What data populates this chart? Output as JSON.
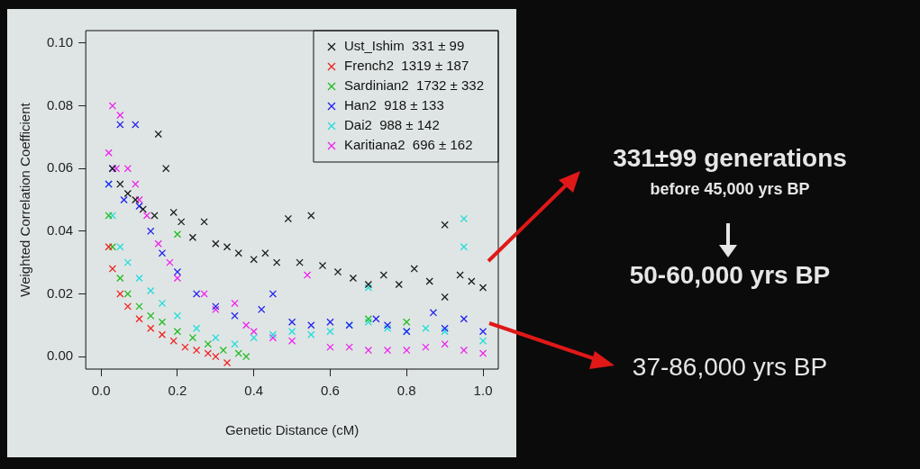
{
  "chart_data": {
    "type": "scatter",
    "xlabel": "Genetic Distance (cM)",
    "ylabel": "Weighted Correlation Coefficient",
    "xlim": [
      -0.04,
      1.04
    ],
    "ylim": [
      -0.004,
      0.104
    ],
    "xticks": [
      {
        "value": 0,
        "label": "0.0"
      },
      {
        "value": 0.2,
        "label": "0.2"
      },
      {
        "value": 0.4,
        "label": "0.4"
      },
      {
        "value": 0.6,
        "label": "0.6"
      },
      {
        "value": 0.8,
        "label": "0.8"
      },
      {
        "value": 1,
        "label": "1.0"
      }
    ],
    "yticks": [
      {
        "value": 0,
        "label": "0.00"
      },
      {
        "value": 0.02,
        "label": "0.02"
      },
      {
        "value": 0.04,
        "label": "0.04"
      },
      {
        "value": 0.06,
        "label": "0.06"
      },
      {
        "value": 0.08,
        "label": "0.08"
      },
      {
        "value": 0.1,
        "label": "0.10"
      }
    ],
    "grid": false,
    "legend": "top right",
    "marker": "cross",
    "series": [
      {
        "name": "Ust_Ishim  331 ± 99",
        "color": "#1a1a1a",
        "x": [
          0.03,
          0.05,
          0.07,
          0.09,
          0.11,
          0.14,
          0.15,
          0.17,
          0.19,
          0.21,
          0.24,
          0.27,
          0.3,
          0.33,
          0.36,
          0.4,
          0.43,
          0.46,
          0.49,
          0.52,
          0.55,
          0.58,
          0.62,
          0.66,
          0.7,
          0.74,
          0.78,
          0.82,
          0.86,
          0.9,
          0.9,
          0.94,
          0.97,
          1.0
        ],
        "values": [
          0.06,
          0.055,
          0.052,
          0.05,
          0.047,
          0.045,
          0.071,
          0.06,
          0.046,
          0.043,
          0.038,
          0.043,
          0.036,
          0.035,
          0.033,
          0.031,
          0.033,
          0.03,
          0.044,
          0.03,
          0.045,
          0.029,
          0.027,
          0.025,
          0.023,
          0.026,
          0.023,
          0.028,
          0.024,
          0.042,
          0.019,
          0.026,
          0.024,
          0.022
        ]
      },
      {
        "name": "French2  1319 ± 187",
        "color": "#ee2222",
        "x": [
          0.02,
          0.03,
          0.05,
          0.07,
          0.1,
          0.13,
          0.16,
          0.19,
          0.22,
          0.25,
          0.28,
          0.3,
          0.33
        ],
        "values": [
          0.035,
          0.028,
          0.02,
          0.016,
          0.012,
          0.009,
          0.007,
          0.005,
          0.003,
          0.002,
          0.001,
          0.0,
          -0.002
        ]
      },
      {
        "name": "Sardinian2  1732 ± 332",
        "color": "#22bb22",
        "x": [
          0.02,
          0.03,
          0.05,
          0.07,
          0.1,
          0.13,
          0.16,
          0.2,
          0.2,
          0.24,
          0.28,
          0.32,
          0.36,
          0.38,
          0.7,
          0.8
        ],
        "values": [
          0.045,
          0.035,
          0.025,
          0.02,
          0.016,
          0.013,
          0.011,
          0.008,
          0.039,
          0.006,
          0.004,
          0.002,
          0.001,
          0.0,
          0.012,
          0.011
        ]
      },
      {
        "name": "Han2  918 ± 133",
        "color": "#2222ee",
        "x": [
          0.02,
          0.03,
          0.05,
          0.06,
          0.09,
          0.1,
          0.13,
          0.16,
          0.2,
          0.25,
          0.3,
          0.35,
          0.42,
          0.45,
          0.5,
          0.55,
          0.6,
          0.65,
          0.72,
          0.75,
          0.8,
          0.87,
          0.9,
          0.95,
          1.0
        ],
        "values": [
          0.055,
          0.06,
          0.074,
          0.05,
          0.074,
          0.048,
          0.04,
          0.033,
          0.027,
          0.02,
          0.016,
          0.013,
          0.015,
          0.02,
          0.011,
          0.01,
          0.011,
          0.01,
          0.012,
          0.01,
          0.008,
          0.014,
          0.009,
          0.012,
          0.008
        ]
      },
      {
        "name": "Dai2  988 ± 142",
        "color": "#22dddd",
        "x": [
          0.02,
          0.03,
          0.05,
          0.07,
          0.1,
          0.13,
          0.16,
          0.2,
          0.25,
          0.3,
          0.35,
          0.4,
          0.45,
          0.5,
          0.55,
          0.6,
          0.65,
          0.7,
          0.7,
          0.75,
          0.8,
          0.85,
          0.9,
          0.95,
          0.95,
          1.0
        ],
        "values": [
          0.055,
          0.045,
          0.035,
          0.03,
          0.025,
          0.021,
          0.017,
          0.013,
          0.009,
          0.006,
          0.004,
          0.006,
          0.007,
          0.008,
          0.007,
          0.008,
          0.01,
          0.022,
          0.011,
          0.009,
          0.008,
          0.009,
          0.008,
          0.044,
          0.035,
          0.005
        ]
      },
      {
        "name": "Karitiana2  696 ± 162",
        "color": "#ee22ee",
        "x": [
          0.02,
          0.03,
          0.04,
          0.05,
          0.07,
          0.09,
          0.1,
          0.12,
          0.15,
          0.18,
          0.2,
          0.27,
          0.3,
          0.35,
          0.38,
          0.4,
          0.45,
          0.5,
          0.54,
          0.6,
          0.65,
          0.7,
          0.75,
          0.8,
          0.85,
          0.9,
          0.95,
          1.0
        ],
        "values": [
          0.065,
          0.08,
          0.06,
          0.077,
          0.06,
          0.055,
          0.05,
          0.045,
          0.036,
          0.03,
          0.025,
          0.02,
          0.015,
          0.017,
          0.01,
          0.008,
          0.006,
          0.005,
          0.026,
          0.003,
          0.003,
          0.002,
          0.002,
          0.002,
          0.003,
          0.004,
          0.002,
          0.001
        ]
      }
    ],
    "annotations": [
      "331±99 generations",
      "before 45,000 yrs BP",
      "50-60,000 yrs BP",
      "37-86,000 yrs BP"
    ]
  }
}
